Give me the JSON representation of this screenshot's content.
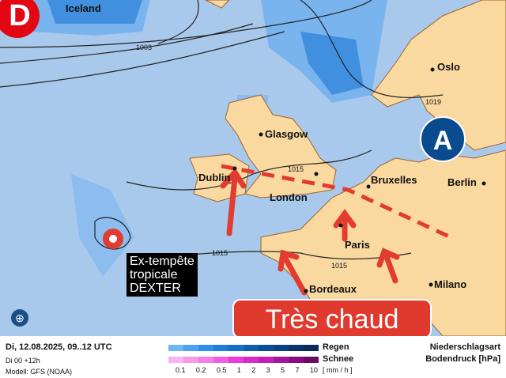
{
  "logo": {
    "letter": "D",
    "color": "#e30613"
  },
  "map": {
    "sea_color": "#a9c9ec",
    "land_color": "#fad9a1",
    "cities": [
      "Iceland",
      "Oslo",
      "Glasgow",
      "Dublin",
      "London",
      "Bruxelles",
      "Berlin",
      "Paris",
      "Bordeaux",
      "Milano"
    ],
    "isobars": [
      "1003",
      "1019",
      "1015",
      "1015",
      "1015"
    ],
    "high_pressure": "A",
    "storm": {
      "line1": "Ex-tempête",
      "line2": "tropicale",
      "line3": "DEXTER"
    },
    "banner": "Très chaud",
    "compass_icon": "globe-icon"
  },
  "footer": {
    "date": "Di, 12.08.2025, 09..12 UTC",
    "run": "Di 00 +12h",
    "model": "Modell: GFS (NOAA)",
    "rain_label": "Regen",
    "snow_label": "Schnee",
    "unit": "[ mm / h ]",
    "ticks": [
      "0.1",
      "0.2",
      "0.5",
      "1",
      "2",
      "3",
      "5",
      "7",
      "10"
    ],
    "type_label": "Niederschlagsart",
    "pressure_label": "Bodendruck [hPa]",
    "rain_colors": [
      "#6fb6f5",
      "#4aa2ee",
      "#2f8fe6",
      "#1f7fd8",
      "#1470c6",
      "#0d5fae",
      "#0a4f98",
      "#0a4282",
      "#0a356b",
      "#0b2a55"
    ],
    "snow_colors": [
      "#f8b4f2",
      "#f59ae9",
      "#f280e4",
      "#ee5fdc",
      "#e83cd5",
      "#d82ac8",
      "#c21fb4",
      "#a3169a",
      "#860f80",
      "#6b0a66"
    ]
  }
}
